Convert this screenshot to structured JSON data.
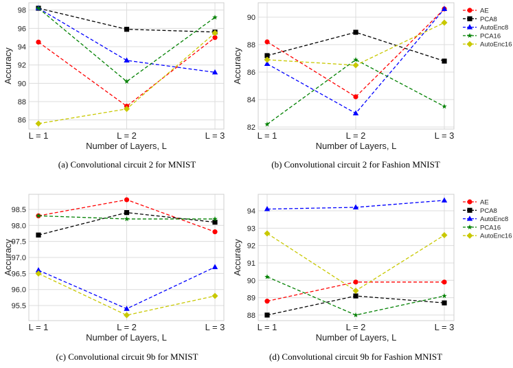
{
  "colors": {
    "AE": "#ff0000",
    "PCA8": "#000000",
    "AutoEnc8": "#0000ff",
    "PCA16": "#008000",
    "AutoEnc16": "#c8c800"
  },
  "markers": {
    "AE": "circle",
    "PCA8": "square",
    "AutoEnc8": "triangle",
    "PCA16": "star",
    "AutoEnc16": "diamond"
  },
  "chart_data": [
    {
      "type": "line",
      "caption": "(a) Convolutional circuit 2 for MNIST",
      "xlabel": "Number of Layers, L",
      "ylabel": "Accuracy",
      "categories": [
        "L = 1",
        "L = 2",
        "L = 3"
      ],
      "ylim": [
        85.0,
        98.8
      ],
      "yticks": [
        "86",
        "88",
        "90",
        "92",
        "94",
        "96",
        "98"
      ],
      "grid": true,
      "legend": "none",
      "series": [
        {
          "name": "AE",
          "values": [
            94.5,
            87.5,
            95.0
          ]
        },
        {
          "name": "PCA8",
          "values": [
            98.2,
            95.9,
            95.6
          ]
        },
        {
          "name": "AutoEnc8",
          "values": [
            98.2,
            92.5,
            91.2
          ]
        },
        {
          "name": "PCA16",
          "values": [
            98.2,
            90.2,
            97.2
          ]
        },
        {
          "name": "AutoEnc16",
          "values": [
            85.6,
            87.2,
            95.5
          ]
        }
      ]
    },
    {
      "type": "line",
      "caption": "(b) Convolutional circuit 2 for Fashion MNIST",
      "xlabel": "Number of Layers, L",
      "ylabel": "Accuracy",
      "categories": [
        "L = 1",
        "L = 2",
        "L = 3"
      ],
      "ylim": [
        81.85,
        91.05
      ],
      "yticks": [
        "82",
        "84",
        "86",
        "88",
        "90"
      ],
      "grid": true,
      "legend": "outside-right",
      "series": [
        {
          "name": "AE",
          "values": [
            88.2,
            84.2,
            90.6
          ]
        },
        {
          "name": "PCA8",
          "values": [
            87.2,
            88.9,
            86.8
          ]
        },
        {
          "name": "AutoEnc8",
          "values": [
            86.6,
            83.0,
            90.6
          ]
        },
        {
          "name": "PCA16",
          "values": [
            82.2,
            86.9,
            83.5
          ]
        },
        {
          "name": "AutoEnc16",
          "values": [
            86.9,
            86.5,
            89.6
          ]
        }
      ]
    },
    {
      "type": "line",
      "caption": "(c) Convolutional circuit 9b for MNIST",
      "xlabel": "Number of Layers, L",
      "ylabel": "Accuracy",
      "categories": [
        "L = 1",
        "L = 2",
        "L = 3"
      ],
      "ylim": [
        95.03,
        98.97
      ],
      "yticks": [
        "95.5",
        "96.0",
        "96.5",
        "97.0",
        "97.5",
        "98.0",
        "98.5"
      ],
      "grid": true,
      "legend": "none",
      "series": [
        {
          "name": "AE",
          "values": [
            98.3,
            98.8,
            97.8
          ]
        },
        {
          "name": "PCA8",
          "values": [
            97.7,
            98.4,
            98.1
          ]
        },
        {
          "name": "AutoEnc8",
          "values": [
            96.6,
            95.4,
            96.7
          ]
        },
        {
          "name": "PCA16",
          "values": [
            98.3,
            98.2,
            98.2
          ]
        },
        {
          "name": "AutoEnc16",
          "values": [
            96.5,
            95.2,
            95.8
          ]
        }
      ]
    },
    {
      "type": "line",
      "caption": "(d) Convolutional circuit 9b for Fashion MNIST",
      "xlabel": "Number of Layers, L",
      "ylabel": "Accuracy",
      "categories": [
        "L = 1",
        "L = 2",
        "L = 3"
      ],
      "ylim": [
        87.68,
        94.95
      ],
      "yticks": [
        "88",
        "89",
        "90",
        "91",
        "92",
        "93",
        "94"
      ],
      "grid": true,
      "legend": "outside-right",
      "series": [
        {
          "name": "AE",
          "values": [
            88.8,
            89.9,
            89.9
          ]
        },
        {
          "name": "PCA8",
          "values": [
            88.0,
            89.1,
            88.7
          ]
        },
        {
          "name": "AutoEnc8",
          "values": [
            94.1,
            94.2,
            94.6
          ]
        },
        {
          "name": "PCA16",
          "values": [
            90.2,
            88.0,
            89.1
          ]
        },
        {
          "name": "AutoEnc16",
          "values": [
            92.7,
            89.4,
            92.6
          ]
        }
      ]
    }
  ]
}
